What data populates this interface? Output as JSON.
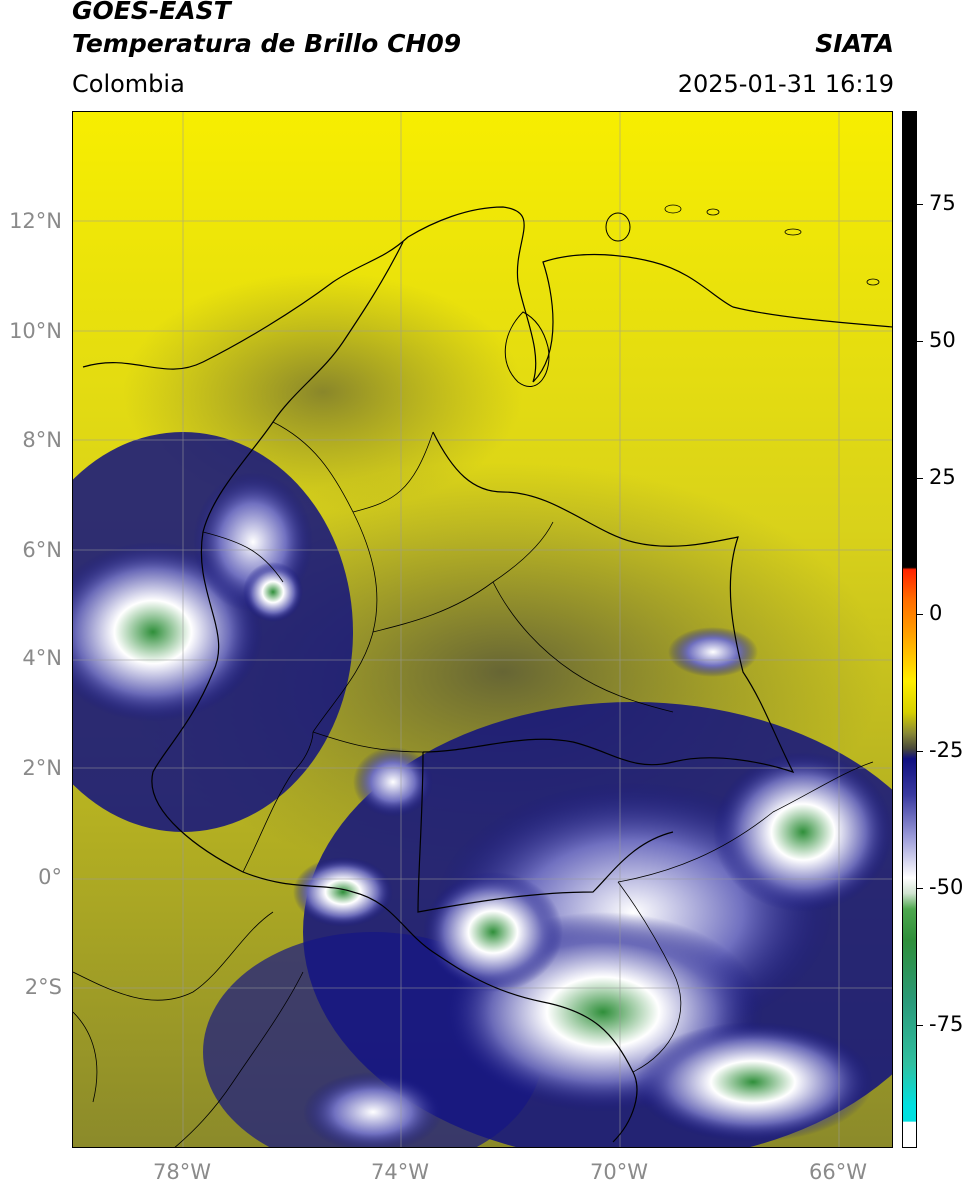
{
  "header": {
    "satellite": "GOES-EAST",
    "product": "Temperatura de Brillo CH09",
    "agency": "SIATA",
    "region": "Colombia",
    "datetime": "2025-01-31 16:19"
  },
  "map": {
    "lat_labels": [
      "12°N",
      "10°N",
      "8°N",
      "6°N",
      "4°N",
      "2°N",
      "0°",
      "2°S"
    ],
    "lon_labels": [
      "78°W",
      "74°W",
      "70°W",
      "66°W"
    ],
    "extent": {
      "lon_min": -80,
      "lon_max": -65,
      "lat_min": -5,
      "lat_max": 14
    },
    "grid_color": "#9a9a9a"
  },
  "colorbar": {
    "tick_labels": [
      "75",
      "50",
      "25",
      "0",
      "-25",
      "-50",
      "-75"
    ],
    "range": [
      -95,
      90
    ],
    "colors": {
      "warm": "#000000",
      "red": "#ff2200",
      "orange": "#ff9900",
      "yellow": "#ffee00",
      "olive": "#5a5a40",
      "navy": "#101080",
      "white": "#ffffff",
      "green": "#2f8f3a",
      "teal": "#30c0a0",
      "cyan": "#00e0e0"
    }
  }
}
